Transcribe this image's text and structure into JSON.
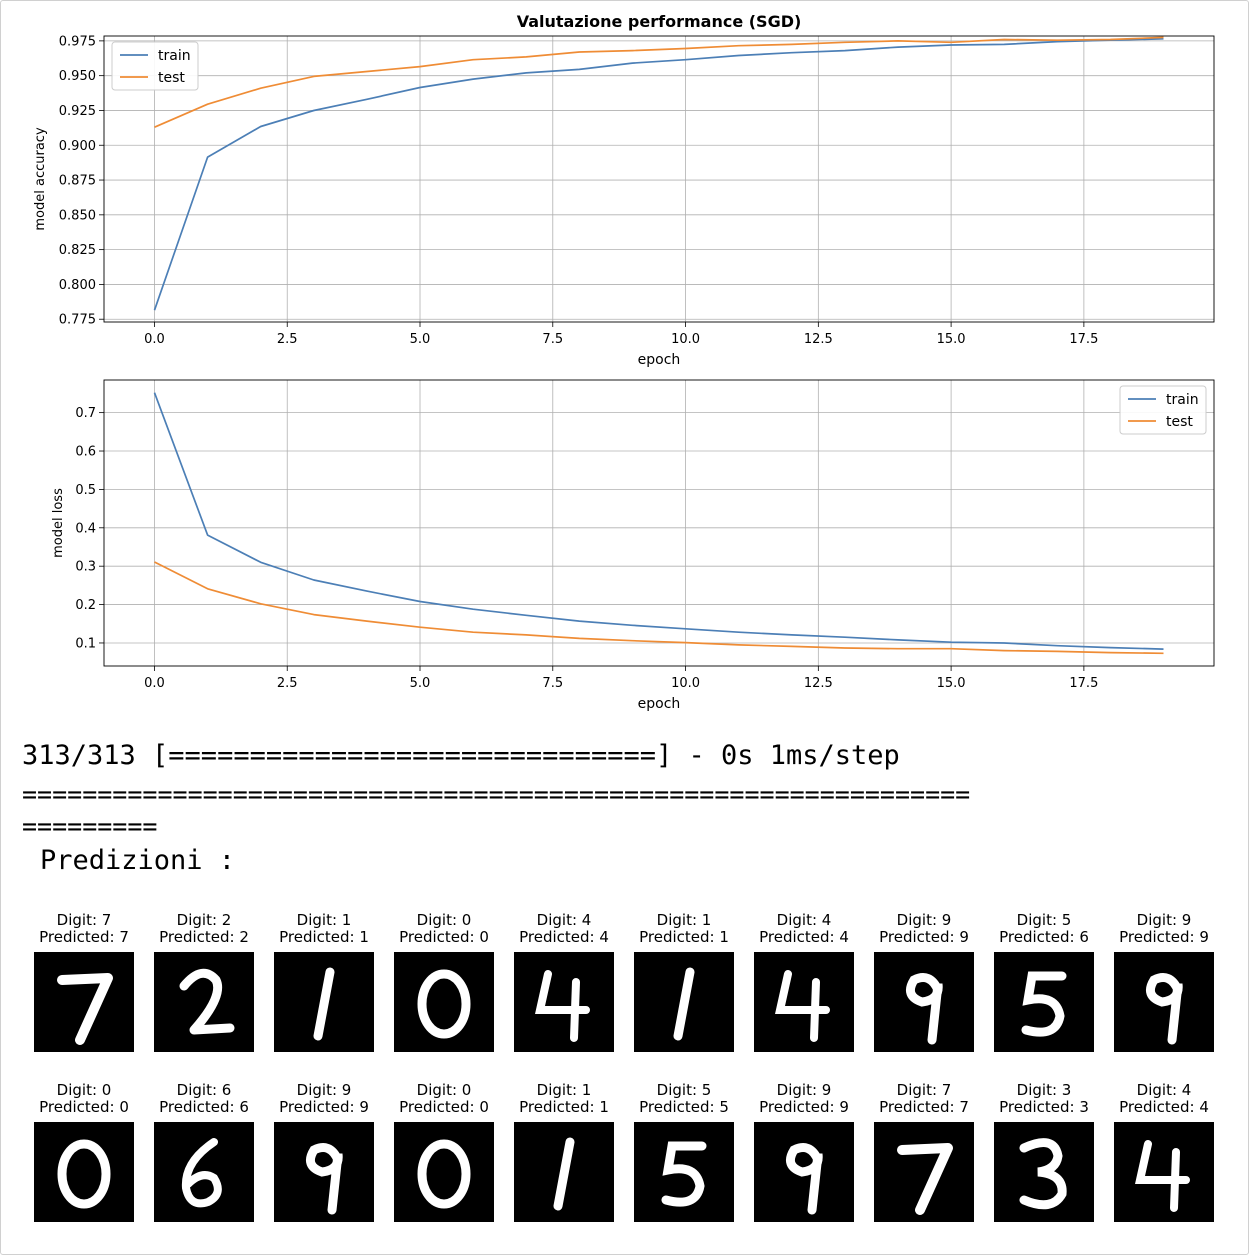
{
  "chart_data": [
    {
      "type": "line",
      "title": "Valutazione performance (SGD)",
      "xlabel": "epoch",
      "ylabel": "model accuracy",
      "xlim": [
        -0.95,
        19.95
      ],
      "ylim": [
        0.773,
        0.9785
      ],
      "xticks": [
        0.0,
        2.5,
        5.0,
        7.5,
        10.0,
        12.5,
        15.0,
        17.5
      ],
      "xtick_labels": [
        "0.0",
        "2.5",
        "5.0",
        "7.5",
        "10.0",
        "12.5",
        "15.0",
        "17.5"
      ],
      "yticks": [
        0.775,
        0.8,
        0.825,
        0.85,
        0.875,
        0.9,
        0.925,
        0.95,
        0.975
      ],
      "ytick_labels": [
        "0.775",
        "0.800",
        "0.825",
        "0.850",
        "0.875",
        "0.900",
        "0.925",
        "0.950",
        "0.975"
      ],
      "grid": true,
      "legend": "upper left",
      "x": [
        0,
        1,
        2,
        3,
        4,
        5,
        6,
        7,
        8,
        9,
        10,
        11,
        12,
        13,
        14,
        15,
        16,
        17,
        18,
        19
      ],
      "series": [
        {
          "name": "train",
          "color": "#4c7fb6",
          "values": [
            0.7815,
            0.8915,
            0.9135,
            0.925,
            0.933,
            0.9415,
            0.9475,
            0.952,
            0.9545,
            0.959,
            0.9615,
            0.9645,
            0.9665,
            0.968,
            0.9705,
            0.972,
            0.9725,
            0.9745,
            0.9755,
            0.9765
          ]
        },
        {
          "name": "test",
          "color": "#ef8c35",
          "values": [
            0.913,
            0.9295,
            0.941,
            0.9495,
            0.953,
            0.9565,
            0.9615,
            0.9635,
            0.967,
            0.968,
            0.9695,
            0.9715,
            0.9725,
            0.974,
            0.975,
            0.974,
            0.976,
            0.9755,
            0.976,
            0.9775
          ]
        }
      ]
    },
    {
      "type": "line",
      "title": "",
      "xlabel": "epoch",
      "ylabel": "model loss",
      "xlim": [
        -0.95,
        19.95
      ],
      "ylim": [
        0.04,
        0.785
      ],
      "xticks": [
        0.0,
        2.5,
        5.0,
        7.5,
        10.0,
        12.5,
        15.0,
        17.5
      ],
      "xtick_labels": [
        "0.0",
        "2.5",
        "5.0",
        "7.5",
        "10.0",
        "12.5",
        "15.0",
        "17.5"
      ],
      "yticks": [
        0.1,
        0.2,
        0.3,
        0.4,
        0.5,
        0.6,
        0.7
      ],
      "ytick_labels": [
        "0.1",
        "0.2",
        "0.3",
        "0.4",
        "0.5",
        "0.6",
        "0.7"
      ],
      "grid": true,
      "legend": "upper right",
      "x": [
        0,
        1,
        2,
        3,
        4,
        5,
        6,
        7,
        8,
        9,
        10,
        11,
        12,
        13,
        14,
        15,
        16,
        17,
        18,
        19
      ],
      "series": [
        {
          "name": "train",
          "color": "#4c7fb6",
          "values": [
            0.752,
            0.381,
            0.31,
            0.264,
            0.235,
            0.208,
            0.188,
            0.172,
            0.157,
            0.146,
            0.137,
            0.128,
            0.121,
            0.115,
            0.108,
            0.102,
            0.1,
            0.093,
            0.088,
            0.084
          ]
        },
        {
          "name": "test",
          "color": "#ef8c35",
          "values": [
            0.311,
            0.241,
            0.202,
            0.174,
            0.157,
            0.141,
            0.128,
            0.121,
            0.112,
            0.106,
            0.101,
            0.095,
            0.091,
            0.087,
            0.085,
            0.085,
            0.08,
            0.078,
            0.075,
            0.073
          ]
        }
      ]
    }
  ],
  "console": {
    "progress_text": "313/313 [==============================] - 0s 1ms/step",
    "separator_line1": "===============================================================",
    "separator_line2": "=========",
    "predictions_heading": "Predizioni :"
  },
  "predictions": [
    {
      "digit": "7",
      "predicted": "7"
    },
    {
      "digit": "2",
      "predicted": "2"
    },
    {
      "digit": "1",
      "predicted": "1"
    },
    {
      "digit": "0",
      "predicted": "0"
    },
    {
      "digit": "4",
      "predicted": "4"
    },
    {
      "digit": "1",
      "predicted": "1"
    },
    {
      "digit": "4",
      "predicted": "4"
    },
    {
      "digit": "9",
      "predicted": "9"
    },
    {
      "digit": "5",
      "predicted": "6"
    },
    {
      "digit": "9",
      "predicted": "9"
    },
    {
      "digit": "0",
      "predicted": "0"
    },
    {
      "digit": "6",
      "predicted": "6"
    },
    {
      "digit": "9",
      "predicted": "9"
    },
    {
      "digit": "0",
      "predicted": "0"
    },
    {
      "digit": "1",
      "predicted": "1"
    },
    {
      "digit": "5",
      "predicted": "5"
    },
    {
      "digit": "9",
      "predicted": "9"
    },
    {
      "digit": "7",
      "predicted": "7"
    },
    {
      "digit": "3",
      "predicted": "3"
    },
    {
      "digit": "4",
      "predicted": "4"
    }
  ],
  "labels": {
    "digit_prefix": "Digit: ",
    "predicted_prefix": "Predicted: "
  }
}
